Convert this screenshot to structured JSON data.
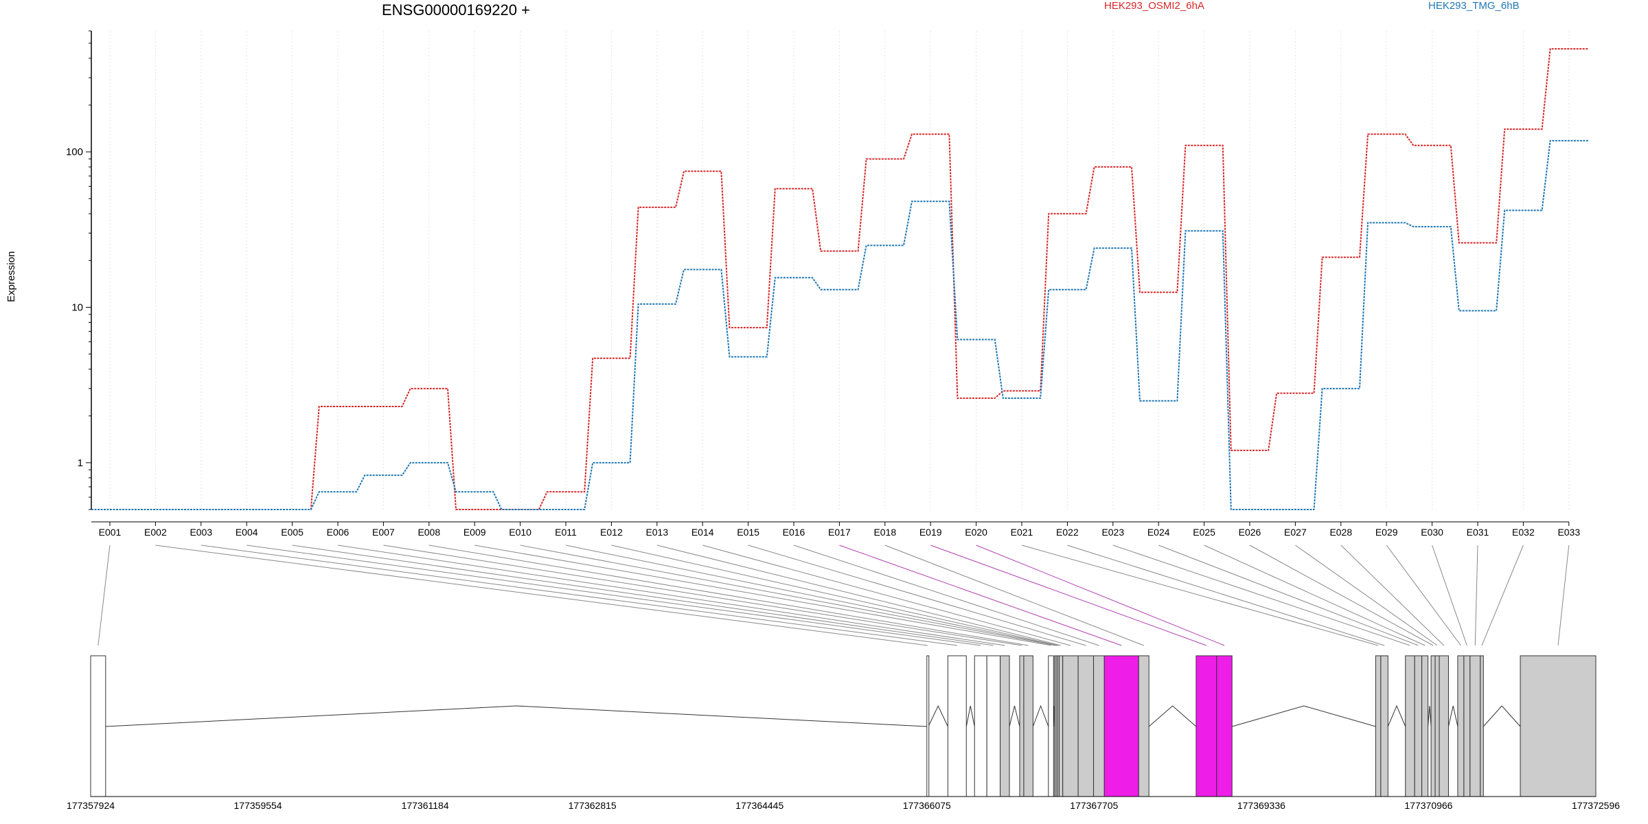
{
  "page": {
    "title": "ENSG00000169220 +",
    "ylabel": "Expression"
  },
  "chart_data": {
    "type": "line",
    "title": "ENSG00000169220 +",
    "xlabel": "",
    "ylabel": "Expression",
    "yscale": "log",
    "ylim": [
      0.5,
      600
    ],
    "yticks": [
      1,
      10,
      100
    ],
    "ytick_labels": [
      "1",
      "10",
      "100"
    ],
    "grid": "vertical dotted",
    "categories": [
      "E001",
      "E002",
      "E003",
      "E004",
      "E005",
      "E006",
      "E007",
      "E008",
      "E009",
      "E010",
      "E011",
      "E012",
      "E013",
      "E014",
      "E015",
      "E016",
      "E017",
      "E018",
      "E019",
      "E020",
      "E021",
      "E022",
      "E023",
      "E024",
      "E025",
      "E026",
      "E027",
      "E028",
      "E029",
      "E030",
      "E031",
      "E032",
      "E033"
    ],
    "series": [
      {
        "name": "HEK293_OSMI2_6hA",
        "color": "#d62728",
        "values": [
          0.5,
          0.5,
          0.5,
          0.5,
          0.5,
          2.3,
          2.3,
          3.0,
          0.5,
          0.5,
          0.65,
          4.7,
          44,
          75,
          7.4,
          58,
          23,
          90,
          130,
          2.6,
          2.9,
          40,
          80,
          12.5,
          110,
          1.2,
          2.8,
          21,
          130,
          110,
          26,
          140,
          460
        ]
      },
      {
        "name": "HEK293_TMG_6hB",
        "color": "#1f77b4",
        "values": [
          0.5,
          0.5,
          0.5,
          0.5,
          0.5,
          0.65,
          0.83,
          1.0,
          0.65,
          0.5,
          0.5,
          1.0,
          10.5,
          17.5,
          4.8,
          15.5,
          13,
          25,
          48,
          6.2,
          2.6,
          13,
          24,
          2.5,
          31,
          0.5,
          0.5,
          3.0,
          35,
          33,
          9.5,
          42,
          118
        ]
      }
    ],
    "gene_model": {
      "coordinate_ticks": [
        "177357924",
        "177359554",
        "177361184",
        "177362815",
        "177364445",
        "177366075",
        "177367705",
        "177369336",
        "177370966",
        "177372596"
      ],
      "coordinate_range": [
        177357924,
        177372596
      ],
      "exons": [
        {
          "id": "E001",
          "start": 177357924,
          "end": 177358070,
          "fill": "#ffffff"
        },
        {
          "id": "E002",
          "start": 177366075,
          "end": 177366090,
          "fill": "#ffffff"
        },
        {
          "id": "E003",
          "start": 177366280,
          "end": 177366460,
          "fill": "#ffffff"
        },
        {
          "id": "E004",
          "start": 177366540,
          "end": 177366660,
          "fill": "#ffffff"
        },
        {
          "id": "E005",
          "start": 177366660,
          "end": 177366790,
          "fill": "#ffffff"
        },
        {
          "id": "E006",
          "start": 177366790,
          "end": 177366880,
          "fill": "#cccccc"
        },
        {
          "id": "E007",
          "start": 177366980,
          "end": 177367020,
          "fill": "#cccccc"
        },
        {
          "id": "E008",
          "start": 177367020,
          "end": 177367110,
          "fill": "#cccccc"
        },
        {
          "id": "E009",
          "start": 177367260,
          "end": 177367310,
          "fill": "#ffffff"
        },
        {
          "id": "E010",
          "start": 177367320,
          "end": 177367335,
          "fill": "#cccccc"
        },
        {
          "id": "E011",
          "start": 177367335,
          "end": 177367350,
          "fill": "#cccccc"
        },
        {
          "id": "E012",
          "start": 177367350,
          "end": 177367365,
          "fill": "#cccccc"
        },
        {
          "id": "E013",
          "start": 177367365,
          "end": 177367400,
          "fill": "#cccccc"
        },
        {
          "id": "E014",
          "start": 177367400,
          "end": 177367550,
          "fill": "#cccccc"
        },
        {
          "id": "E015",
          "start": 177367550,
          "end": 177367700,
          "fill": "#cccccc"
        },
        {
          "id": "E016",
          "start": 177367700,
          "end": 177367805,
          "fill": "#cccccc"
        },
        {
          "id": "E017",
          "start": 177367805,
          "end": 177368140,
          "fill": "#ee1ee8"
        },
        {
          "id": "E018",
          "start": 177368140,
          "end": 177368240,
          "fill": "#cccccc"
        },
        {
          "id": "E019",
          "start": 177368700,
          "end": 177368900,
          "fill": "#ee1ee8"
        },
        {
          "id": "E020",
          "start": 177368900,
          "end": 177369050,
          "fill": "#ee1ee8"
        },
        {
          "id": "E021",
          "start": 177370450,
          "end": 177370500,
          "fill": "#cccccc"
        },
        {
          "id": "E022",
          "start": 177370500,
          "end": 177370570,
          "fill": "#cccccc"
        },
        {
          "id": "E023",
          "start": 177370740,
          "end": 177370830,
          "fill": "#cccccc"
        },
        {
          "id": "E024",
          "start": 177370830,
          "end": 177370900,
          "fill": "#cccccc"
        },
        {
          "id": "E025",
          "start": 177370900,
          "end": 177370960,
          "fill": "#cccccc"
        },
        {
          "id": "E026",
          "start": 177370990,
          "end": 177371030,
          "fill": "#cccccc"
        },
        {
          "id": "E027",
          "start": 177371030,
          "end": 177371070,
          "fill": "#cccccc"
        },
        {
          "id": "E028",
          "start": 177371070,
          "end": 177371160,
          "fill": "#cccccc"
        },
        {
          "id": "E029",
          "start": 177371250,
          "end": 177371310,
          "fill": "#cccccc"
        },
        {
          "id": "E030",
          "start": 177371310,
          "end": 177371370,
          "fill": "#cccccc"
        },
        {
          "id": "E031",
          "start": 177371370,
          "end": 177371470,
          "fill": "#cccccc"
        },
        {
          "id": "E032",
          "start": 177371470,
          "end": 177371500,
          "fill": "#cccccc"
        },
        {
          "id": "E033",
          "start": 177371860,
          "end": 177372596,
          "fill": "#cccccc"
        }
      ],
      "highlight_color": "#b040b0"
    }
  }
}
